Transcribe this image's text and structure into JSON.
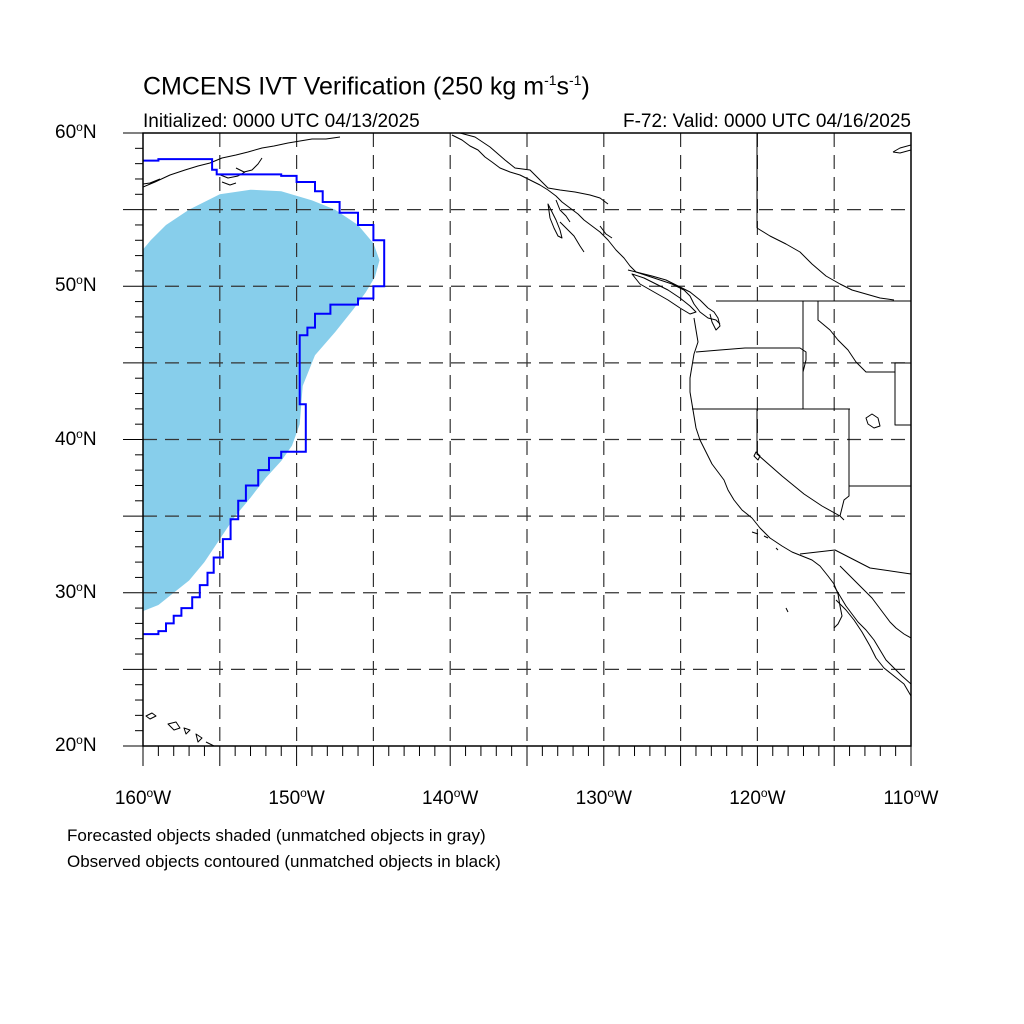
{
  "figure": {
    "title_main": "CMCENS IVT Verification (250 kg m",
    "title_unit_exp1": "-1",
    "title_unit_mid": "s",
    "title_unit_exp2": "-1",
    "title_close": ")",
    "initialized": "Initialized: 0000 UTC 04/13/2025",
    "valid": "F-72: Valid: 0000 UTC 04/16/2025",
    "footnote_forecast": "Forecasted objects shaded (unmatched objects in gray)",
    "footnote_observed": "Observed objects contoured (unmatched objects in black)"
  },
  "axes": {
    "lon_range": [
      -160,
      -110
    ],
    "lat_range": [
      20,
      60
    ],
    "lat_labels": [
      {
        "value": 60,
        "num": "60",
        "hemi": "N"
      },
      {
        "value": 50,
        "num": "50",
        "hemi": "N"
      },
      {
        "value": 40,
        "num": "40",
        "hemi": "N"
      },
      {
        "value": 30,
        "num": "30",
        "hemi": "N"
      },
      {
        "value": 20,
        "num": "20",
        "hemi": "N"
      }
    ],
    "lon_labels": [
      {
        "value": -160,
        "num": "160",
        "hemi": "W"
      },
      {
        "value": -150,
        "num": "150",
        "hemi": "W"
      },
      {
        "value": -140,
        "num": "140",
        "hemi": "W"
      },
      {
        "value": -130,
        "num": "130",
        "hemi": "W"
      },
      {
        "value": -120,
        "num": "120",
        "hemi": "W"
      },
      {
        "value": -110,
        "num": "110",
        "hemi": "W"
      }
    ],
    "grid_lons": [
      -155,
      -150,
      -145,
      -140,
      -135,
      -130,
      -125,
      -120,
      -115
    ],
    "grid_lats": [
      25,
      30,
      35,
      40,
      45,
      50,
      55
    ]
  },
  "colors": {
    "forecast_fill": "#87ceeb",
    "observed_contour": "#0000ff",
    "coastline": "#000000",
    "grid": "#333333"
  },
  "forecast_object": [
    [
      -160,
      28.8
    ],
    [
      -159,
      29.2
    ],
    [
      -158,
      30.0
    ],
    [
      -157,
      30.8
    ],
    [
      -156,
      32.0
    ],
    [
      -155,
      33.5
    ],
    [
      -154,
      35.0
    ],
    [
      -153,
      36.2
    ],
    [
      -152,
      37.5
    ],
    [
      -151,
      38.6
    ],
    [
      -150.3,
      39.6
    ],
    [
      -149.8,
      41.0
    ],
    [
      -149.6,
      43.5
    ],
    [
      -148.8,
      45.5
    ],
    [
      -147.5,
      47.0
    ],
    [
      -146.3,
      48.5
    ],
    [
      -145.5,
      49.6
    ],
    [
      -144.9,
      50.6
    ],
    [
      -144.6,
      51.7
    ],
    [
      -145.0,
      52.8
    ],
    [
      -146.0,
      54.0
    ],
    [
      -147.5,
      55.0
    ],
    [
      -149.0,
      55.6
    ],
    [
      -151.0,
      56.2
    ],
    [
      -153.0,
      56.3
    ],
    [
      -155.0,
      56.0
    ],
    [
      -157.0,
      55.0
    ],
    [
      -158.5,
      54.0
    ],
    [
      -159.5,
      53.0
    ],
    [
      -160,
      52.4
    ]
  ],
  "observed_object": [
    [
      -160,
      27.3
    ],
    [
      -159.0,
      27.5
    ],
    [
      -158.5,
      28.0
    ],
    [
      -158.0,
      28.5
    ],
    [
      -157.5,
      29.0
    ],
    [
      -156.8,
      29.7
    ],
    [
      -156.3,
      30.5
    ],
    [
      -155.8,
      31.3
    ],
    [
      -155.4,
      32.3
    ],
    [
      -154.8,
      33.5
    ],
    [
      -154.3,
      34.8
    ],
    [
      -153.8,
      36.0
    ],
    [
      -153.3,
      37.0
    ],
    [
      -152.5,
      38.0
    ],
    [
      -151.8,
      38.8
    ],
    [
      -151.0,
      39.2
    ],
    [
      -149.4,
      39.2
    ],
    [
      -149.4,
      42.3
    ],
    [
      -149.8,
      42.5
    ],
    [
      -149.8,
      46.8
    ],
    [
      -149.3,
      47.3
    ],
    [
      -148.8,
      48.2
    ],
    [
      -147.8,
      48.8
    ],
    [
      -146.0,
      49.2
    ],
    [
      -145.0,
      50.0
    ],
    [
      -144.3,
      50.5
    ],
    [
      -144.3,
      53.0
    ],
    [
      -145.0,
      54.0
    ],
    [
      -146.0,
      54.8
    ],
    [
      -147.2,
      55.5
    ],
    [
      -148.3,
      56.2
    ],
    [
      -148.8,
      56.8
    ],
    [
      -150.0,
      57.2
    ],
    [
      -151.0,
      57.3
    ],
    [
      -152.5,
      57.3
    ],
    [
      -154.0,
      57.3
    ],
    [
      -155.2,
      57.6
    ],
    [
      -155.5,
      58.3
    ],
    [
      -156.5,
      58.3
    ],
    [
      -157.8,
      58.3
    ],
    [
      -159.0,
      58.2
    ],
    [
      -160,
      58.2
    ]
  ]
}
